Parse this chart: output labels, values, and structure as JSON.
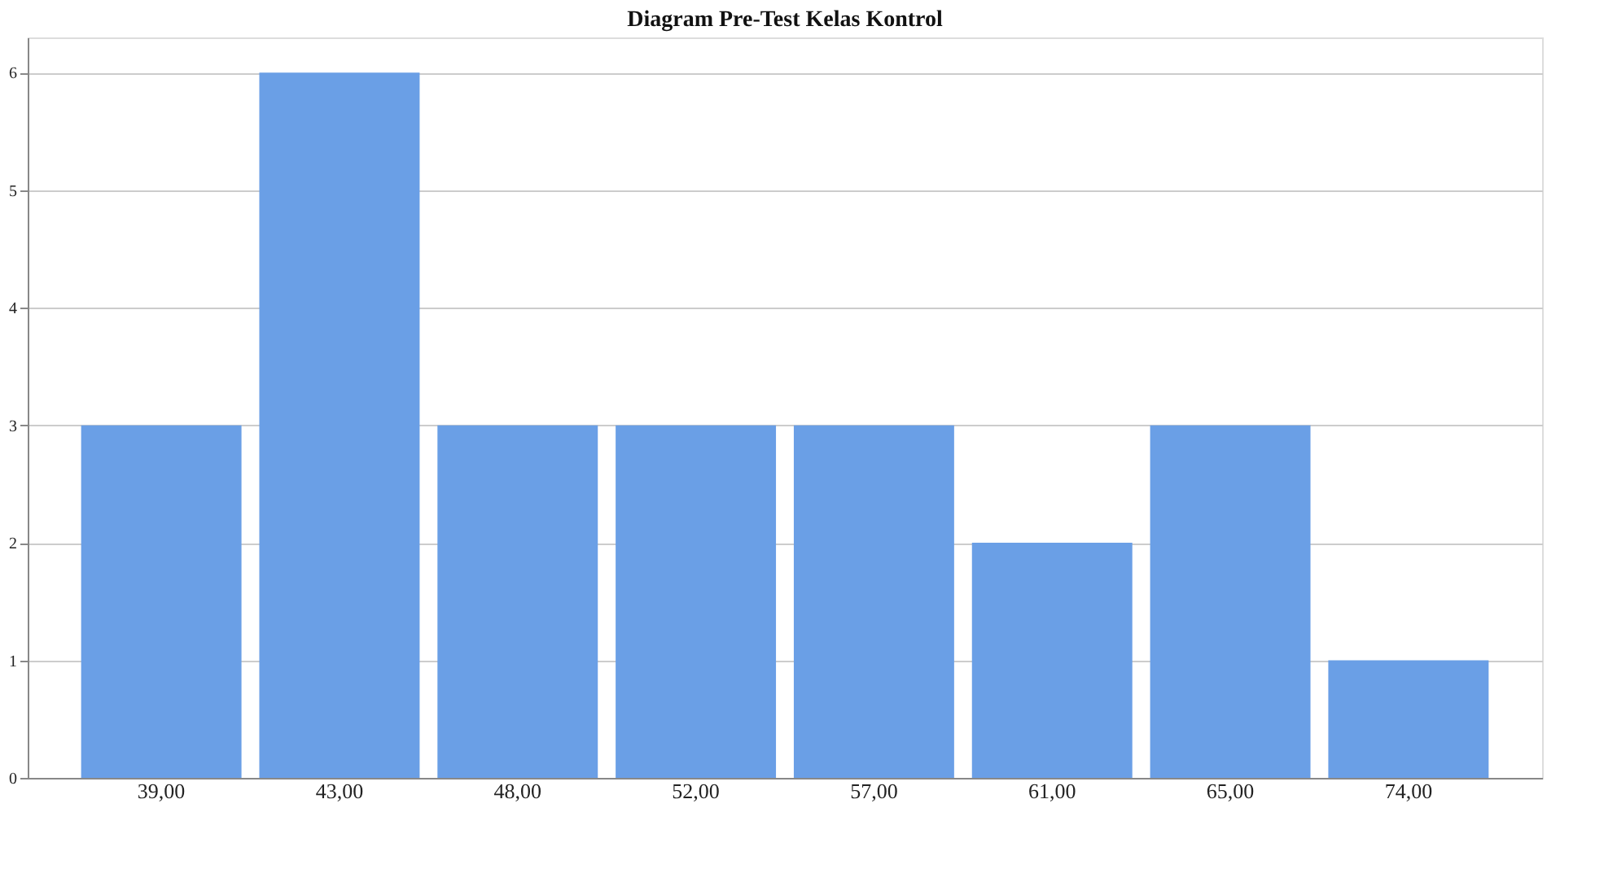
{
  "chart_data": {
    "type": "bar",
    "title": "Diagram Pre-Test Kelas Kontrol",
    "categories": [
      "39,00",
      "43,00",
      "48,00",
      "52,00",
      "57,00",
      "61,00",
      "65,00",
      "74,00"
    ],
    "values": [
      3,
      6,
      3,
      3,
      3,
      2,
      3,
      1
    ],
    "color": "#6a9fe6",
    "ylim": [
      0,
      6.3
    ],
    "yticks": [
      0,
      1,
      2,
      3,
      4,
      5,
      6
    ],
    "grid": "y"
  }
}
